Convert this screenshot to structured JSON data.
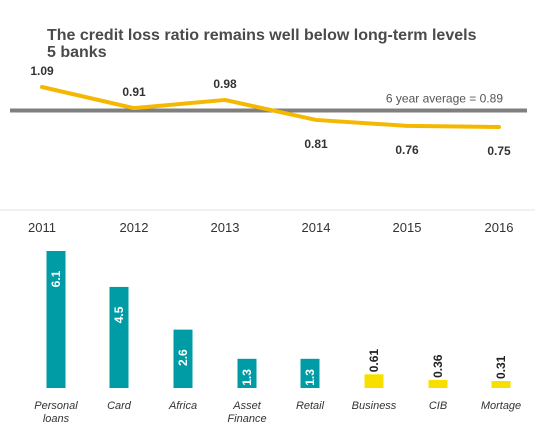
{
  "chart_data": [
    {
      "type": "line",
      "title": "The credit loss ratio remains well below long-term levels",
      "subtitle": "5 banks",
      "x": [
        "2011",
        "2012",
        "2013",
        "2014",
        "2015",
        "2016"
      ],
      "values": [
        1.09,
        0.91,
        0.98,
        0.81,
        0.76,
        0.75
      ],
      "value_labels": [
        "1.09",
        "0.91",
        "0.98",
        "0.81",
        "0.76",
        "0.75"
      ],
      "reference_line": {
        "label": "6 year average = 0.89",
        "value": 0.89
      },
      "ylim": [
        0.6,
        1.15
      ],
      "grid": false,
      "line_color": "#f5b800",
      "reference_color": "#7f7f7f"
    },
    {
      "type": "bar",
      "categories": [
        "Personal loans",
        "Card",
        "Africa",
        "Asset Finance",
        "Retail",
        "Business",
        "CIB",
        "Mortage"
      ],
      "values": [
        6.1,
        4.5,
        2.6,
        1.3,
        1.3,
        0.61,
        0.36,
        0.31
      ],
      "value_labels": [
        "6.1",
        "4.5",
        "2.6",
        "1.3",
        "1.3",
        "0.61",
        "0.36",
        "0.31"
      ],
      "ylim": [
        0,
        6.1
      ],
      "grid": false,
      "colors": [
        "#009ca6",
        "#009ca6",
        "#009ca6",
        "#009ca6",
        "#009ca6",
        "#f7e000",
        "#f7e000",
        "#f7e000"
      ]
    }
  ]
}
